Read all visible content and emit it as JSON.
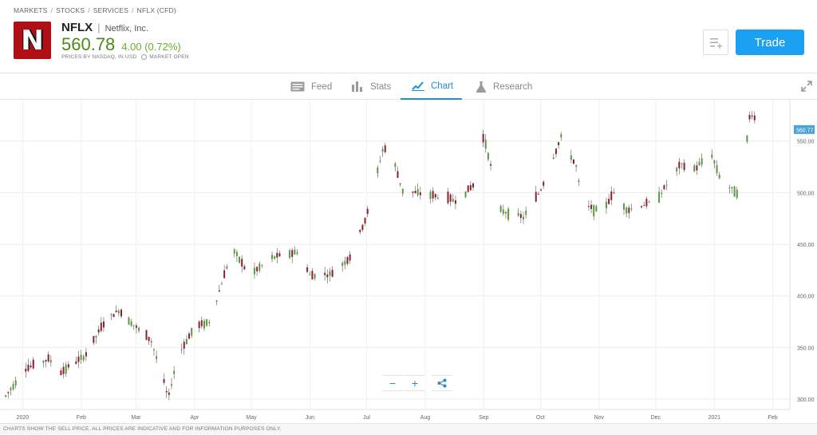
{
  "breadcrumb": [
    "MARKETS",
    "STOCKS",
    "SERVICES",
    "NFLX (CFD)"
  ],
  "instrument": {
    "logo_letter": "N",
    "symbol": "NFLX",
    "name": "Netflix, Inc.",
    "price": "560.78",
    "change": "4.00 (0.72%)",
    "prices_note": "PRICES BY NASDAQ, IN USD",
    "market_status": "MARKET OPEN"
  },
  "actions": {
    "trade_label": "Trade",
    "watchlist_icon": "add-to-watchlist-icon"
  },
  "tabs": [
    {
      "label": "Feed",
      "icon": "feed-icon",
      "active": false
    },
    {
      "label": "Stats",
      "icon": "stats-icon",
      "active": false
    },
    {
      "label": "Chart",
      "icon": "chart-icon",
      "active": true
    },
    {
      "label": "Research",
      "icon": "research-icon",
      "active": false
    }
  ],
  "colors": {
    "up": "#5a9a3c",
    "down": "#8b1f2d",
    "accent": "#1ca0f2",
    "price_tag": "#4aa3d8"
  },
  "zoom_controls": {
    "zoom_out": "−",
    "zoom_in": "+",
    "share_icon": "share-icon"
  },
  "footer_text": "CHARTS SHOW THE SELL PRICE. ALL PRICES ARE INDICATIVE AND FOR INFORMATION PURPOSES ONLY.",
  "chart_data": {
    "type": "candlestick",
    "x_labels": [
      "2020",
      "Feb",
      "Mar",
      "Apr",
      "May",
      "Jun",
      "Jul",
      "Aug",
      "Sep",
      "Oct",
      "Nov",
      "Dec",
      "2021",
      "Feb"
    ],
    "y_ticks": [
      "300.00",
      "350.00",
      "400.00",
      "450.00",
      "500.00",
      "550.00"
    ],
    "ylim": [
      290,
      590
    ],
    "current_price_label": "560.77",
    "grid": true,
    "close_series": [
      {
        "t": "2019-12-23",
        "v": 303
      },
      {
        "t": "2020-01-02",
        "v": 329
      },
      {
        "t": "2020-01-15",
        "v": 339
      },
      {
        "t": "2020-01-21",
        "v": 326
      },
      {
        "t": "2020-02-03",
        "v": 342
      },
      {
        "t": "2020-02-14",
        "v": 377
      },
      {
        "t": "2020-02-21",
        "v": 386
      },
      {
        "t": "2020-03-02",
        "v": 368
      },
      {
        "t": "2020-03-09",
        "v": 357
      },
      {
        "t": "2020-03-16",
        "v": 315
      },
      {
        "t": "2020-03-18",
        "v": 300
      },
      {
        "t": "2020-03-23",
        "v": 342
      },
      {
        "t": "2020-04-01",
        "v": 370
      },
      {
        "t": "2020-04-09",
        "v": 375
      },
      {
        "t": "2020-04-17",
        "v": 422
      },
      {
        "t": "2020-04-21",
        "v": 446
      },
      {
        "t": "2020-04-30",
        "v": 420
      },
      {
        "t": "2020-05-12",
        "v": 437
      },
      {
        "t": "2020-05-26",
        "v": 443
      },
      {
        "t": "2020-06-01",
        "v": 420
      },
      {
        "t": "2020-06-12",
        "v": 421
      },
      {
        "t": "2020-06-22",
        "v": 437
      },
      {
        "t": "2020-07-01",
        "v": 477
      },
      {
        "t": "2020-07-10",
        "v": 545
      },
      {
        "t": "2020-07-16",
        "v": 527
      },
      {
        "t": "2020-07-20",
        "v": 502
      },
      {
        "t": "2020-08-03",
        "v": 498
      },
      {
        "t": "2020-08-18",
        "v": 492
      },
      {
        "t": "2020-08-28",
        "v": 510
      },
      {
        "t": "2020-09-01",
        "v": 556
      },
      {
        "t": "2020-09-10",
        "v": 483
      },
      {
        "t": "2020-09-22",
        "v": 476
      },
      {
        "t": "2020-10-01",
        "v": 502
      },
      {
        "t": "2020-10-12",
        "v": 554
      },
      {
        "t": "2020-10-20",
        "v": 525
      },
      {
        "t": "2020-10-23",
        "v": 489
      },
      {
        "t": "2020-11-02",
        "v": 481
      },
      {
        "t": "2020-11-09",
        "v": 500
      },
      {
        "t": "2020-11-16",
        "v": 483
      },
      {
        "t": "2020-12-01",
        "v": 492
      },
      {
        "t": "2020-12-14",
        "v": 527
      },
      {
        "t": "2020-12-22",
        "v": 523
      },
      {
        "t": "2020-12-30",
        "v": 540
      },
      {
        "t": "2021-01-05",
        "v": 510
      },
      {
        "t": "2021-01-15",
        "v": 498
      },
      {
        "t": "2021-01-20",
        "v": 578
      },
      {
        "t": "2021-01-27",
        "v": 561
      }
    ]
  }
}
